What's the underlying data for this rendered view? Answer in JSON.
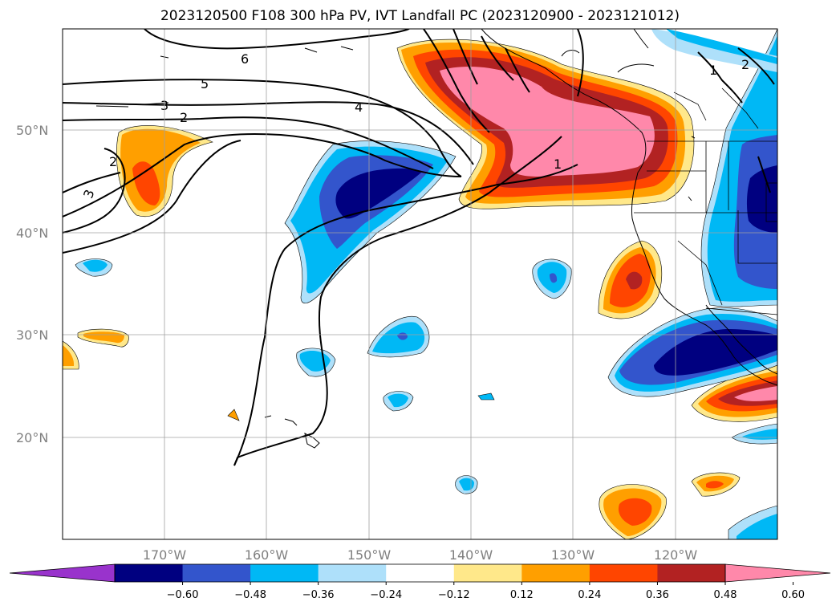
{
  "title": "2023120500 F108 300 hPa PV, IVT Landfall PC (2023120900 - 2023121012)",
  "map": {
    "lat_ticks": [
      "50°N",
      "40°N",
      "30°N",
      "20°N"
    ],
    "lon_ticks": [
      "170°W",
      "160°W",
      "150°W",
      "140°W",
      "130°W",
      "120°W"
    ],
    "pv_contour_labels": [
      "6",
      "5",
      "4",
      "3",
      "2",
      "2",
      "3",
      "1",
      "1",
      "2"
    ],
    "grid": true
  },
  "colorbar": {
    "levels": [
      "−0.60",
      "−0.48",
      "−0.36",
      "−0.24",
      "−0.12",
      "0.12",
      "0.24",
      "0.36",
      "0.48",
      "0.60"
    ],
    "colors": [
      "#9933cc",
      "#000080",
      "#3355cc",
      "#00b8f5",
      "#aee0fa",
      "#ffffff",
      "#ffe88a",
      "#ff9f00",
      "#ff4500",
      "#b22222",
      "#ff88aa"
    ]
  }
}
